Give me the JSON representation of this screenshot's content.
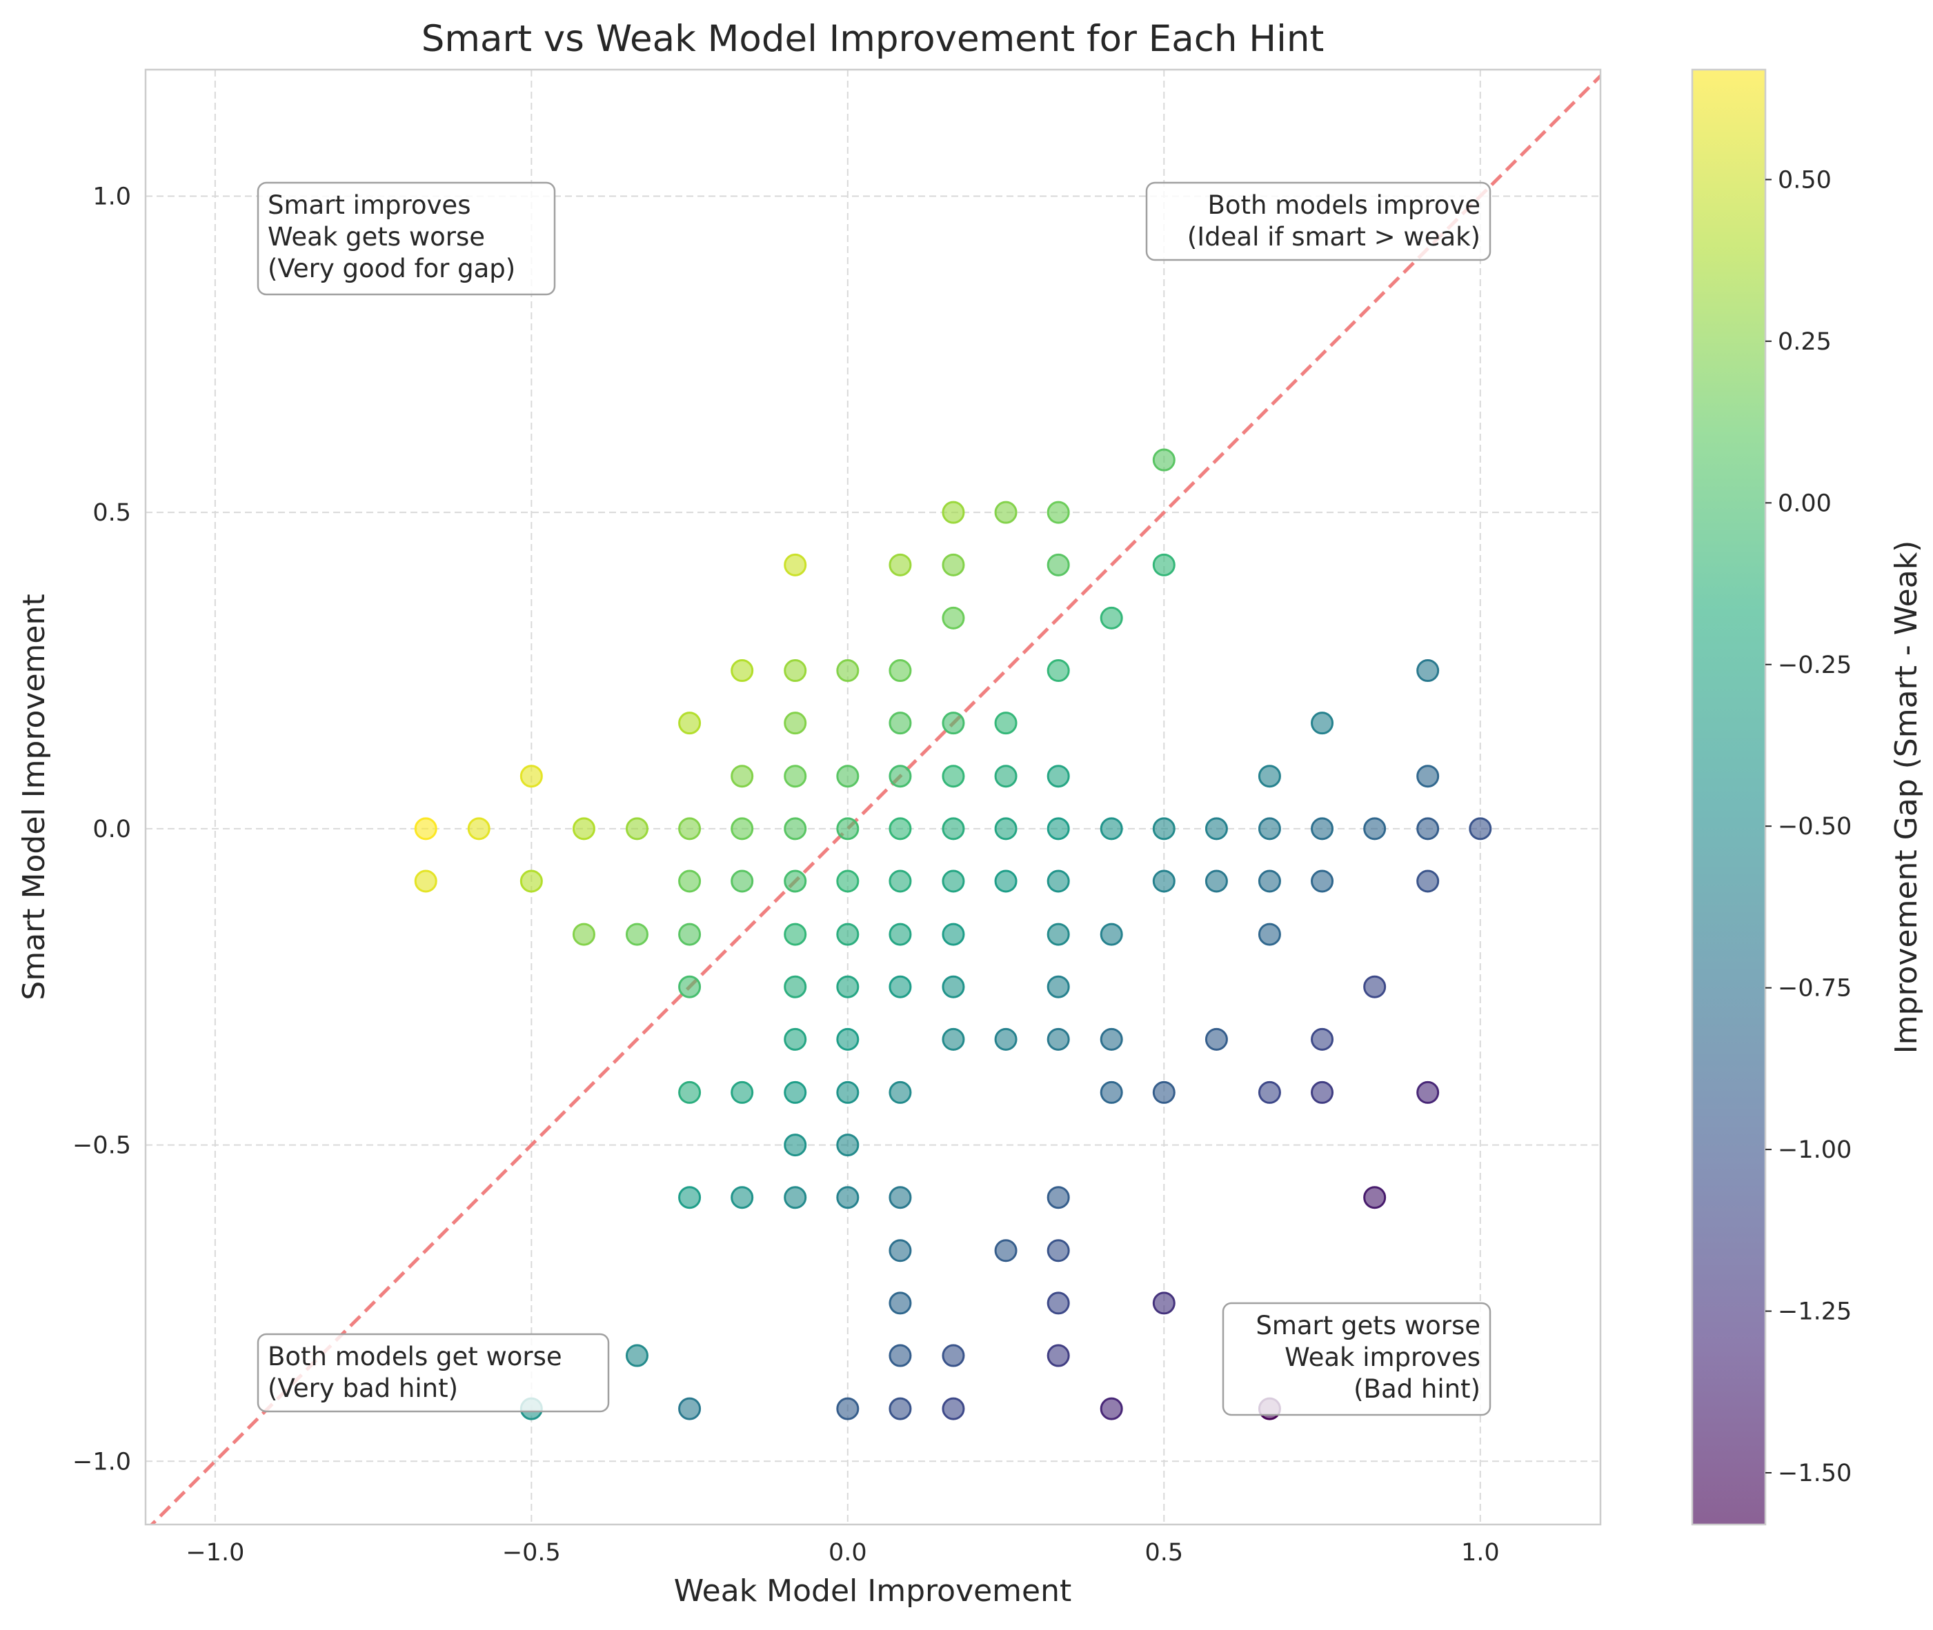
{
  "chart_data": {
    "type": "scatter",
    "title": "Smart vs Weak Model Improvement for Each Hint",
    "xlabel": "Weak Model Improvement",
    "ylabel": "Smart Model Improvement",
    "xlim": [
      -1.11,
      1.19
    ],
    "ylim": [
      -1.1,
      1.2
    ],
    "x_ticks": [
      -1.0,
      -0.5,
      0.0,
      0.5,
      1.0
    ],
    "y_ticks": [
      -1.0,
      -0.5,
      0.0,
      0.5,
      1.0
    ],
    "x_tick_labels": [
      "−1.0",
      "−0.5",
      "0.0",
      "0.5",
      "1.0"
    ],
    "y_tick_labels": [
      "−1.0",
      "−0.5",
      "0.0",
      "0.5",
      "1.0"
    ],
    "grid": true,
    "diagonal": {
      "style": "dashed",
      "color": "#f08080"
    },
    "colorbar": {
      "label": "Improvement Gap (Smart - Weak)",
      "colormap": "viridis",
      "range": [
        -1.58,
        0.67
      ],
      "ticks": [
        0.5,
        0.25,
        0.0,
        -0.25,
        -0.5,
        -0.75,
        -1.0,
        -1.25,
        -1.5
      ],
      "tick_labels": [
        "0.50",
        "0.25",
        "0.00",
        "−0.25",
        "−0.50",
        "−0.75",
        "−1.00",
        "−1.25",
        "−1.50"
      ]
    },
    "annotations": [
      {
        "position": "top-left",
        "lines": [
          "Smart improves",
          "Weak gets worse",
          "(Very good for gap)"
        ]
      },
      {
        "position": "top-right",
        "lines": [
          "Both models improve",
          "(Ideal if smart > weak)"
        ]
      },
      {
        "position": "bottom-left",
        "lines": [
          "Both models get worse",
          "(Very bad hint)"
        ]
      },
      {
        "position": "bottom-right",
        "lines": [
          "Smart gets worse",
          "Weak improves",
          "(Bad hint)"
        ]
      }
    ],
    "points": [
      [
        -0.667,
        0.0
      ],
      [
        -0.583,
        0.0
      ],
      [
        -0.417,
        0.0
      ],
      [
        -0.333,
        0.0
      ],
      [
        -0.25,
        0.0
      ],
      [
        -0.167,
        0.0
      ],
      [
        -0.083,
        0.0
      ],
      [
        0.0,
        0.0
      ],
      [
        0.083,
        0.0
      ],
      [
        0.167,
        0.0
      ],
      [
        0.25,
        0.0
      ],
      [
        0.333,
        0.0
      ],
      [
        0.417,
        0.0
      ],
      [
        0.5,
        0.0
      ],
      [
        0.583,
        0.0
      ],
      [
        0.667,
        0.0
      ],
      [
        0.75,
        0.0
      ],
      [
        0.833,
        0.0
      ],
      [
        0.917,
        0.0
      ],
      [
        1.0,
        0.0
      ],
      [
        -0.667,
        -0.083
      ],
      [
        -0.5,
        -0.083
      ],
      [
        -0.25,
        -0.083
      ],
      [
        -0.167,
        -0.083
      ],
      [
        -0.083,
        -0.083
      ],
      [
        0.0,
        -0.083
      ],
      [
        0.083,
        -0.083
      ],
      [
        0.167,
        -0.083
      ],
      [
        0.25,
        -0.083
      ],
      [
        0.333,
        -0.083
      ],
      [
        0.5,
        -0.083
      ],
      [
        0.583,
        -0.083
      ],
      [
        0.667,
        -0.083
      ],
      [
        0.75,
        -0.083
      ],
      [
        0.917,
        -0.083
      ],
      [
        -0.5,
        0.083
      ],
      [
        -0.167,
        0.083
      ],
      [
        -0.083,
        0.083
      ],
      [
        0.0,
        0.083
      ],
      [
        0.083,
        0.083
      ],
      [
        0.167,
        0.083
      ],
      [
        0.25,
        0.083
      ],
      [
        0.333,
        0.083
      ],
      [
        0.667,
        0.083
      ],
      [
        0.917,
        0.083
      ],
      [
        -0.25,
        0.167
      ],
      [
        -0.083,
        0.167
      ],
      [
        0.083,
        0.167
      ],
      [
        0.167,
        0.167
      ],
      [
        0.25,
        0.167
      ],
      [
        0.75,
        0.167
      ],
      [
        -0.167,
        0.25
      ],
      [
        -0.083,
        0.25
      ],
      [
        0.0,
        0.25
      ],
      [
        0.083,
        0.25
      ],
      [
        0.333,
        0.25
      ],
      [
        0.917,
        0.25
      ],
      [
        0.167,
        0.333
      ],
      [
        0.417,
        0.333
      ],
      [
        -0.083,
        0.417
      ],
      [
        0.083,
        0.417
      ],
      [
        0.167,
        0.417
      ],
      [
        0.333,
        0.417
      ],
      [
        0.5,
        0.417
      ],
      [
        0.167,
        0.5
      ],
      [
        0.25,
        0.5
      ],
      [
        0.333,
        0.5
      ],
      [
        0.5,
        0.583
      ],
      [
        -0.417,
        -0.167
      ],
      [
        -0.333,
        -0.167
      ],
      [
        -0.25,
        -0.167
      ],
      [
        -0.083,
        -0.167
      ],
      [
        0.0,
        -0.167
      ],
      [
        0.083,
        -0.167
      ],
      [
        0.167,
        -0.167
      ],
      [
        0.333,
        -0.167
      ],
      [
        0.417,
        -0.167
      ],
      [
        0.667,
        -0.167
      ],
      [
        -0.25,
        -0.25
      ],
      [
        -0.083,
        -0.25
      ],
      [
        0.0,
        -0.25
      ],
      [
        0.083,
        -0.25
      ],
      [
        0.167,
        -0.25
      ],
      [
        0.333,
        -0.25
      ],
      [
        0.833,
        -0.25
      ],
      [
        -0.083,
        -0.333
      ],
      [
        0.0,
        -0.333
      ],
      [
        0.167,
        -0.333
      ],
      [
        0.25,
        -0.333
      ],
      [
        0.333,
        -0.333
      ],
      [
        0.417,
        -0.333
      ],
      [
        0.583,
        -0.333
      ],
      [
        0.75,
        -0.333
      ],
      [
        -0.25,
        -0.417
      ],
      [
        -0.167,
        -0.417
      ],
      [
        -0.083,
        -0.417
      ],
      [
        0.0,
        -0.417
      ],
      [
        0.083,
        -0.417
      ],
      [
        0.417,
        -0.417
      ],
      [
        0.5,
        -0.417
      ],
      [
        0.667,
        -0.417
      ],
      [
        0.75,
        -0.417
      ],
      [
        0.917,
        -0.417
      ],
      [
        -0.083,
        -0.5
      ],
      [
        0.0,
        -0.5
      ],
      [
        -0.25,
        -0.583
      ],
      [
        -0.167,
        -0.583
      ],
      [
        -0.083,
        -0.583
      ],
      [
        0.0,
        -0.583
      ],
      [
        0.083,
        -0.583
      ],
      [
        0.333,
        -0.583
      ],
      [
        0.833,
        -0.583
      ],
      [
        0.083,
        -0.667
      ],
      [
        0.25,
        -0.667
      ],
      [
        0.333,
        -0.667
      ],
      [
        0.083,
        -0.75
      ],
      [
        0.333,
        -0.75
      ],
      [
        0.5,
        -0.75
      ],
      [
        -0.333,
        -0.833
      ],
      [
        0.083,
        -0.833
      ],
      [
        0.167,
        -0.833
      ],
      [
        0.333,
        -0.833
      ],
      [
        -0.5,
        -0.917
      ],
      [
        -0.25,
        -0.917
      ],
      [
        0.0,
        -0.917
      ],
      [
        0.083,
        -0.917
      ],
      [
        0.167,
        -0.917
      ],
      [
        0.417,
        -0.917
      ],
      [
        0.667,
        -0.917
      ]
    ]
  }
}
